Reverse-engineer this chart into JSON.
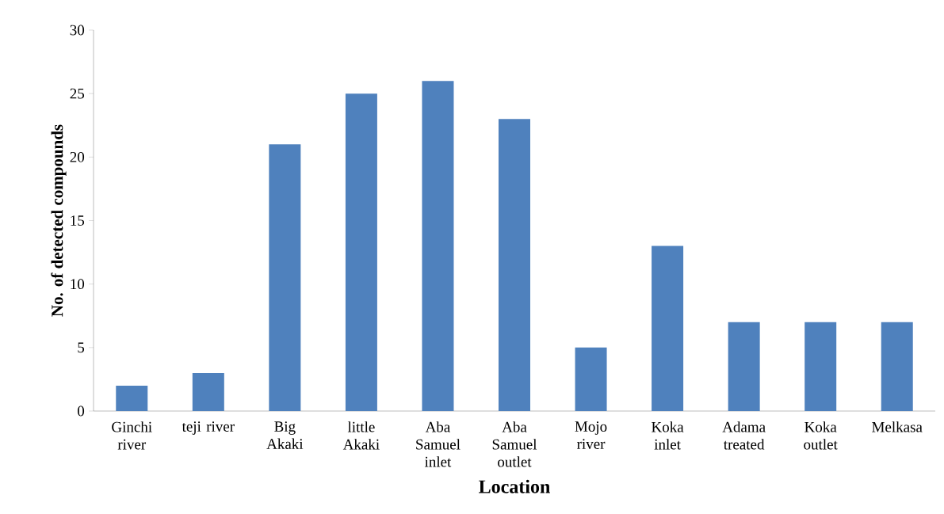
{
  "chart_data": {
    "type": "bar",
    "categories": [
      "Ginchi river",
      "teji river",
      "Big Akaki",
      "little Akaki",
      "Aba Samuel inlet",
      "Aba Samuel outlet",
      "Mojo river",
      "Koka inlet",
      "Adama treated",
      "Koka outlet",
      "Melkasa"
    ],
    "values": [
      2,
      3,
      21,
      25,
      26,
      23,
      5,
      13,
      7,
      7,
      7
    ],
    "color": "#4f81bd",
    "xlabel": "Location",
    "ylabel": "No. of detected compounds",
    "ylim": [
      0,
      30
    ],
    "yticks": [
      0,
      5,
      10,
      15,
      20,
      25,
      30
    ],
    "grid": false
  }
}
